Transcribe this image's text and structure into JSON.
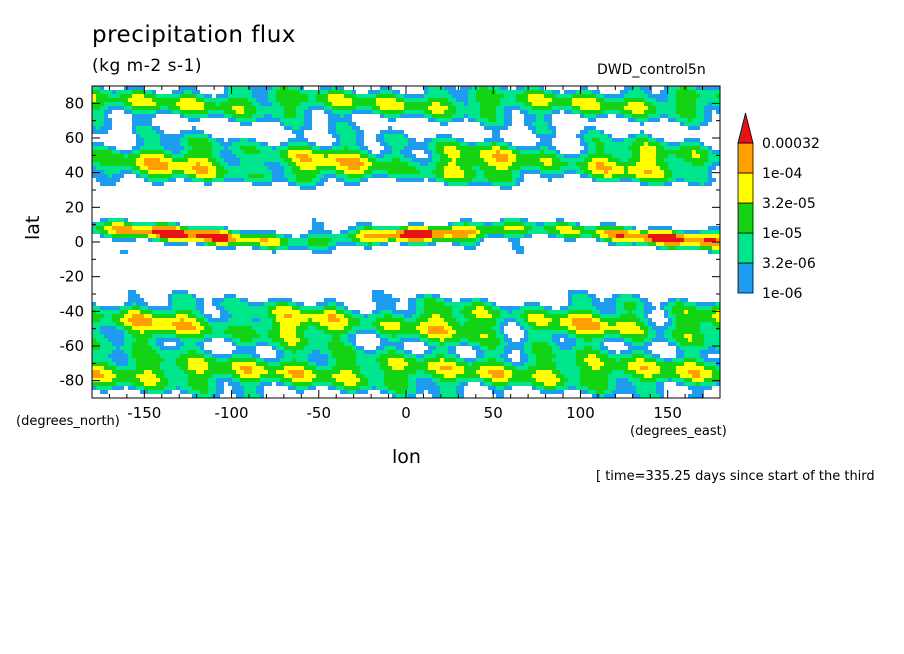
{
  "chart_data": {
    "type": "heatmap",
    "title": "precipitation flux",
    "units": "(kg m-2 s-1)",
    "dataset": "DWD_control5n",
    "xlabel": "lon",
    "ylabel": "lat",
    "x_units": "(degrees_east)",
    "y_units": "(degrees_north)",
    "xlim": [
      -180,
      180
    ],
    "ylim": [
      -90,
      90
    ],
    "x_ticks": [
      -150,
      -100,
      -50,
      0,
      50,
      100,
      150
    ],
    "y_ticks": [
      -80,
      -60,
      -40,
      -20,
      0,
      20,
      40,
      60,
      80
    ],
    "footnote": "[ time=335.25 days since start of the third",
    "colorbar": {
      "levels": [
        "1e-06",
        "3.2e-06",
        "1e-05",
        "3.2e-05",
        "1e-04",
        "0.00032"
      ],
      "colors": [
        "#1e9cf0",
        "#00e68c",
        "#14d214",
        "#ffff00",
        "#ffa000",
        "#e61414"
      ]
    }
  }
}
